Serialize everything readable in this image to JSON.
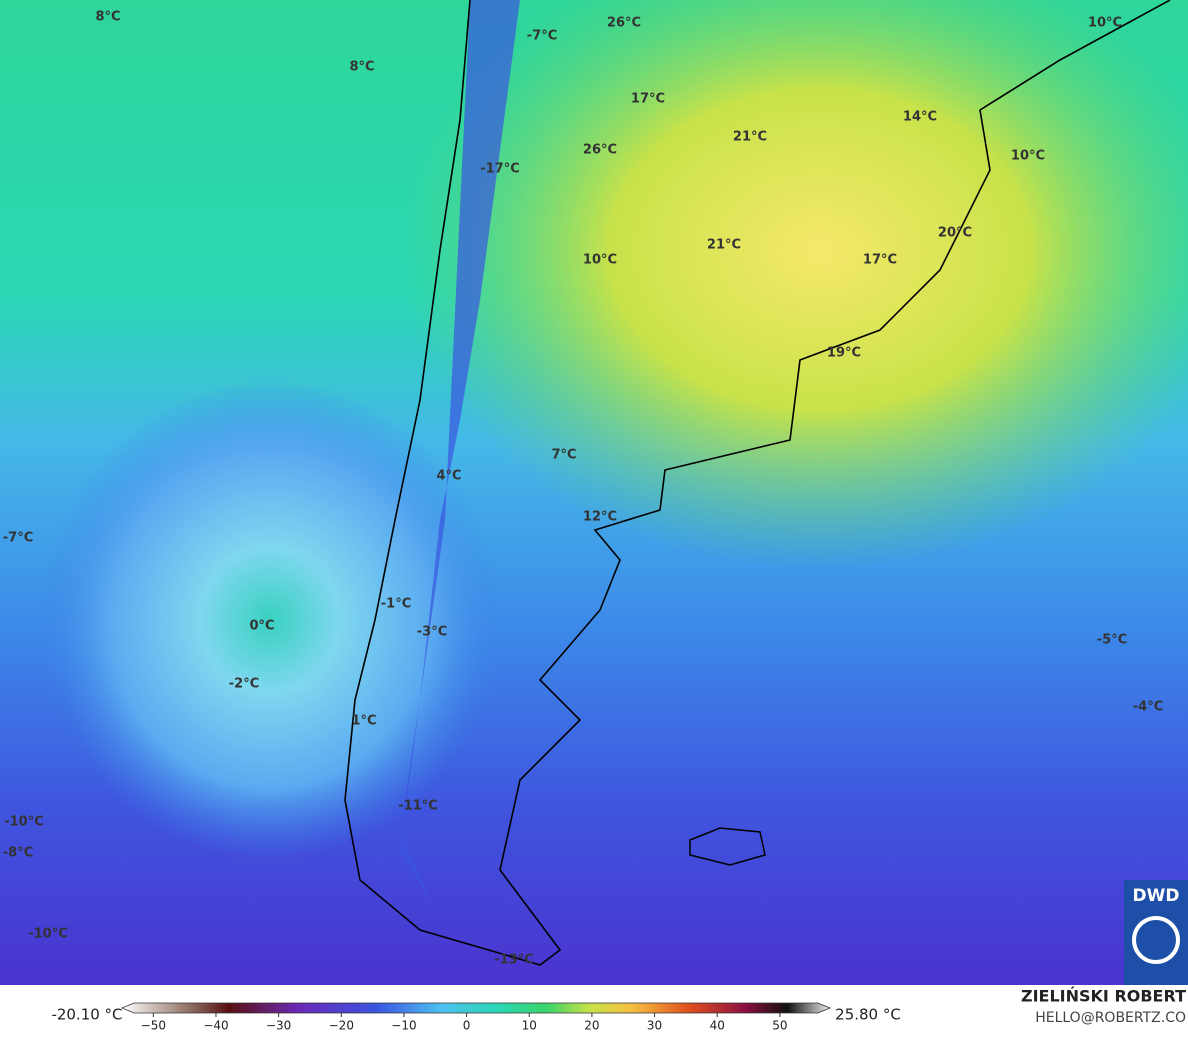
{
  "map": {
    "labels": [
      "8°C",
      "8°C",
      "-7°C",
      "26°C",
      "10°C",
      "17°C",
      "14°C",
      "21°C",
      "26°C",
      "10°C",
      "-17°C",
      "21°C",
      "20°C",
      "10°C",
      "17°C",
      "19°C",
      "7°C",
      "4°C",
      "12°C",
      "-7°C",
      "-1°C",
      "0°C",
      "-3°C",
      "-5°C",
      "-2°C",
      "-4°C",
      "1°C",
      "-11°C",
      "-10°C",
      "-8°C",
      "-10°C",
      "-13°C"
    ]
  },
  "colorbar": {
    "min_label": "-20.10 °C",
    "max_label": "25.80 °C",
    "lim": [
      -55,
      58
    ],
    "ticks": [
      {
        "value": -50,
        "label": "−50"
      },
      {
        "value": -40,
        "label": "−40"
      },
      {
        "value": -30,
        "label": "−30"
      },
      {
        "value": -20,
        "label": "−20"
      },
      {
        "value": -10,
        "label": "−10"
      },
      0,
      10,
      20,
      30,
      40,
      50
    ]
  },
  "credits": {
    "author": "ZIELIŃSKI ROBERT",
    "contact": "HELLO@ROBERTZ.CO",
    "logo": "DWD"
  }
}
